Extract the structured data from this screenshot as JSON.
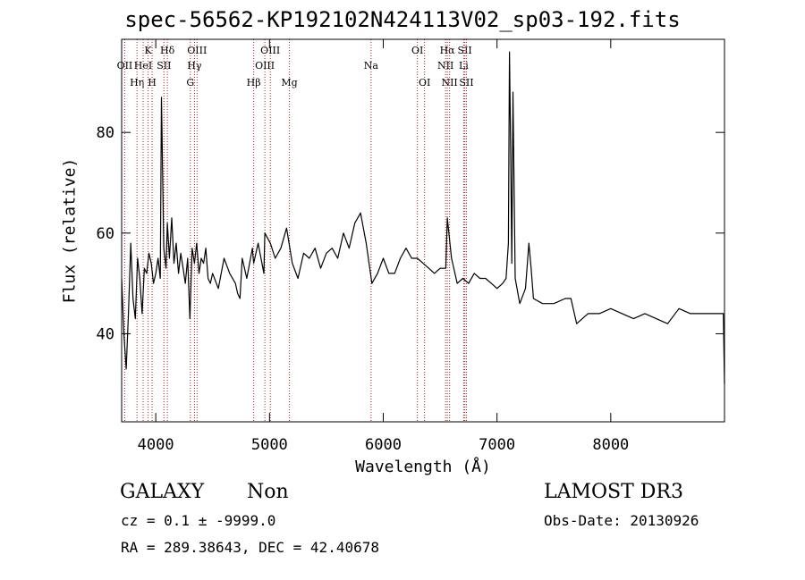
{
  "chart_data": {
    "type": "line",
    "title": "spec-56562-KP192102N424113V02_sp03-192.fits",
    "xlabel": "Wavelength (Å)",
    "ylabel": "Flux (relative)",
    "xlim": [
      3700,
      9000
    ],
    "ylim": [
      22.5,
      98.5
    ],
    "x_ticks": [
      4000,
      5000,
      6000,
      7000,
      8000
    ],
    "y_ticks": [
      40,
      60,
      80
    ],
    "grid": false,
    "legend": "none",
    "line_color": "#000000",
    "marker_color": "#b22222",
    "series": [
      {
        "x": [
          3700,
          3720,
          3740,
          3760,
          3780,
          3800,
          3820,
          3840,
          3860,
          3880,
          3900,
          3920,
          3940,
          3960,
          3980,
          4000,
          4020,
          4040,
          4050,
          4070,
          4090,
          4102,
          4120,
          4140,
          4160,
          4180,
          4200,
          4220,
          4240,
          4260,
          4280,
          4300,
          4320,
          4340,
          4360,
          4380,
          4400,
          4420,
          4440,
          4460,
          4480,
          4500,
          4550,
          4600,
          4650,
          4700,
          4720,
          4740,
          4760,
          4800,
          4850,
          4861,
          4900,
          4950,
          4959,
          5007,
          5050,
          5100,
          5150,
          5200,
          5250,
          5300,
          5350,
          5400,
          5450,
          5500,
          5550,
          5600,
          5650,
          5700,
          5750,
          5800,
          5850,
          5900,
          5950,
          6000,
          6050,
          6100,
          6150,
          6200,
          6250,
          6300,
          6350,
          6400,
          6450,
          6500,
          6550,
          6563,
          6600,
          6650,
          6700,
          6750,
          6800,
          6850,
          6900,
          6950,
          7000,
          7050,
          7080,
          7100,
          7110,
          7120,
          7130,
          7140,
          7160,
          7200,
          7250,
          7280,
          7300,
          7320,
          7400,
          7500,
          7600,
          7650,
          7700,
          7800,
          7900,
          8000,
          8100,
          8200,
          8300,
          8400,
          8500,
          8600,
          8700,
          8800,
          8900,
          8990,
          9000
        ],
        "y": [
          51,
          40,
          33,
          44,
          58,
          47,
          43,
          55,
          51,
          44,
          53,
          52,
          56,
          54,
          50,
          52,
          55,
          51,
          87,
          57,
          53,
          62,
          55,
          63,
          54,
          58,
          52,
          56,
          53,
          50,
          55,
          43,
          57,
          54,
          58,
          52,
          55,
          54,
          57,
          51,
          50,
          52,
          49,
          55,
          52,
          50,
          48,
          47,
          55,
          51,
          57,
          54,
          58,
          52,
          60,
          58,
          55,
          57,
          61,
          54,
          51,
          56,
          55,
          57,
          53,
          56,
          57,
          55,
          60,
          57,
          62,
          64,
          58,
          50,
          52,
          55,
          52,
          52,
          55,
          57,
          55,
          55,
          54,
          53,
          52,
          53,
          53,
          63,
          55,
          50,
          51,
          50,
          52,
          51,
          51,
          50,
          49,
          50,
          51,
          58,
          96,
          77,
          54,
          88,
          51,
          46,
          49,
          58,
          53,
          47,
          46,
          46,
          47,
          47,
          42,
          44,
          44,
          45,
          44,
          43,
          44,
          43,
          42,
          45,
          44,
          44,
          44,
          44,
          30
        ]
      }
    ],
    "line_markers": [
      {
        "x": 3727,
        "label": "OII",
        "row": 1
      },
      {
        "x": 3835,
        "label": "Hη",
        "row": 2
      },
      {
        "x": 3889,
        "label": "HeI",
        "row": 1
      },
      {
        "x": 3933,
        "label": "K",
        "row": 0
      },
      {
        "x": 3968,
        "label": "H",
        "row": 2
      },
      {
        "x": 4072,
        "label": "SII",
        "row": 1
      },
      {
        "x": 4102,
        "label": "Hδ",
        "row": 0
      },
      {
        "x": 4304,
        "label": "G",
        "row": 2
      },
      {
        "x": 4340,
        "label": "Hγ",
        "row": 1
      },
      {
        "x": 4363,
        "label": "OIII",
        "row": 0
      },
      {
        "x": 4861,
        "label": "Hβ",
        "row": 2
      },
      {
        "x": 4959,
        "label": "OIII",
        "row": 1
      },
      {
        "x": 5007,
        "label": "OIII",
        "row": 0
      },
      {
        "x": 5175,
        "label": "Mg",
        "row": 2
      },
      {
        "x": 5893,
        "label": "Na",
        "row": 1
      },
      {
        "x": 6300,
        "label": "OI",
        "row": 0
      },
      {
        "x": 6363,
        "label": "OI",
        "row": 2
      },
      {
        "x": 6548,
        "label": "NII",
        "row": 1
      },
      {
        "x": 6563,
        "label": "Hα",
        "row": 0
      },
      {
        "x": 6583,
        "label": "NII",
        "row": 2
      },
      {
        "x": 6707,
        "label": "Li",
        "row": 1
      },
      {
        "x": 6717,
        "label": "SII",
        "row": 0
      },
      {
        "x": 6731,
        "label": "SII",
        "row": 2
      }
    ]
  },
  "info": {
    "class_label": "GALAXY",
    "subclass_label": "Non",
    "survey_label": "LAMOST DR3",
    "cz_line": "cz = 0.1 ± -9999.0",
    "obs_date": "Obs-Date: 20130926",
    "coords_line": "RA = 289.38643, DEC =  42.40678"
  }
}
